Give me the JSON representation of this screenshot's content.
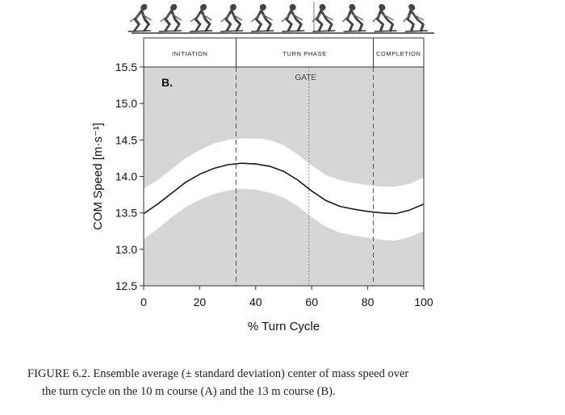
{
  "chart_data": {
    "type": "area",
    "panel_label": "B.",
    "xlabel": "% Turn Cycle",
    "ylabel": "COM Speed [m·s⁻¹]",
    "xlim": [
      0,
      100
    ],
    "ylim": [
      12.5,
      15.5
    ],
    "xticks": [
      0,
      20,
      40,
      60,
      80,
      100
    ],
    "yticks": [
      12.5,
      13.0,
      13.5,
      14.0,
      14.5,
      15.0,
      15.5
    ],
    "phases": [
      {
        "label": "INITIATION",
        "start": 0,
        "end": 33
      },
      {
        "label": "TURN PHASE",
        "start": 33,
        "end": 82
      },
      {
        "label": "COMPLETION",
        "start": 82,
        "end": 100
      }
    ],
    "gate": {
      "label": "GATE",
      "x": 59
    },
    "series": [
      {
        "x": [
          0,
          5,
          10,
          15,
          20,
          25,
          30,
          35,
          40,
          45,
          50,
          55,
          60,
          65,
          70,
          75,
          80,
          85,
          90,
          95,
          100
        ],
        "mean": [
          13.49,
          13.62,
          13.77,
          13.92,
          14.03,
          14.11,
          14.16,
          14.18,
          14.17,
          14.14,
          14.07,
          13.95,
          13.8,
          13.67,
          13.59,
          13.55,
          13.52,
          13.5,
          13.49,
          13.54,
          13.62
        ],
        "upper": [
          13.83,
          13.95,
          14.1,
          14.25,
          14.36,
          14.45,
          14.5,
          14.52,
          14.52,
          14.5,
          14.43,
          14.3,
          14.15,
          14.02,
          13.95,
          13.91,
          13.88,
          13.86,
          13.86,
          13.9,
          13.98
        ],
        "lower": [
          13.14,
          13.28,
          13.44,
          13.58,
          13.68,
          13.76,
          13.81,
          13.83,
          13.82,
          13.78,
          13.71,
          13.59,
          13.44,
          13.31,
          13.23,
          13.19,
          13.16,
          13.13,
          13.12,
          13.17,
          13.25
        ]
      }
    ]
  },
  "caption": {
    "line1": "FIGURE 6.2.  Ensemble average (± standard deviation) center of mass speed over",
    "line2": "the turn cycle on the 10 m course (A) and the 13 m course (B)."
  },
  "illustration": {
    "icon": "skier-sequence-icon",
    "count": 10
  }
}
